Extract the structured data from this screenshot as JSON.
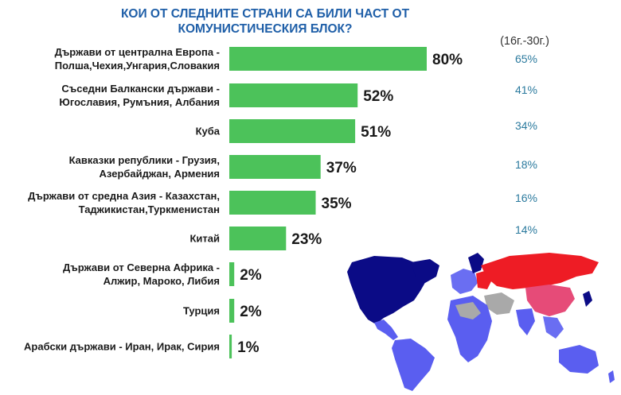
{
  "chart_data": {
    "type": "bar",
    "orientation": "horizontal",
    "title_lines": [
      "КОИ ОТ СЛЕДНИТЕ СТРАНИ СА БИЛИ ЧАСТ ОТ",
      "КОМУНИСТИЧЕСКИЯ БЛОК?"
    ],
    "categories": [
      [
        "Държави от централна Европа -",
        "Полша,Чехия,Унгария,Словакия"
      ],
      [
        "Съседни Балкански държави -",
        "Югославия, Румъния, Албания"
      ],
      [
        "Куба"
      ],
      [
        "Кавказки републики - Грузия,",
        "Азербайджан, Армения"
      ],
      [
        "Държави от средна Азия - Казахстан,",
        "Таджикистан,Туркменистан"
      ],
      [
        "Китай"
      ],
      [
        "Държави от Северна Африка -",
        "Алжир, Мароко, Либия"
      ],
      [
        "Турция"
      ],
      [
        "Арабски държави - Иран, Ирак, Сирия"
      ]
    ],
    "values": [
      80,
      52,
      51,
      37,
      35,
      23,
      2,
      2,
      1
    ],
    "value_labels": [
      "80%",
      "52%",
      "51%",
      "37%",
      "35%",
      "23%",
      "2%",
      "2%",
      "1%"
    ],
    "bar_color": "#4cc25a",
    "xlim": [
      0,
      100
    ],
    "youth_header": "(16г.-30г.)",
    "youth_labels": [
      "65%",
      "41%",
      "34%",
      "18%",
      "16%",
      "14%"
    ],
    "youth_color": "#2b7a9e"
  },
  "map": {
    "colors": {
      "red": "#ee1c25",
      "darkblue": "#0b0b86",
      "blue": "#5a5ef0",
      "grey": "#a9a9a9"
    }
  }
}
